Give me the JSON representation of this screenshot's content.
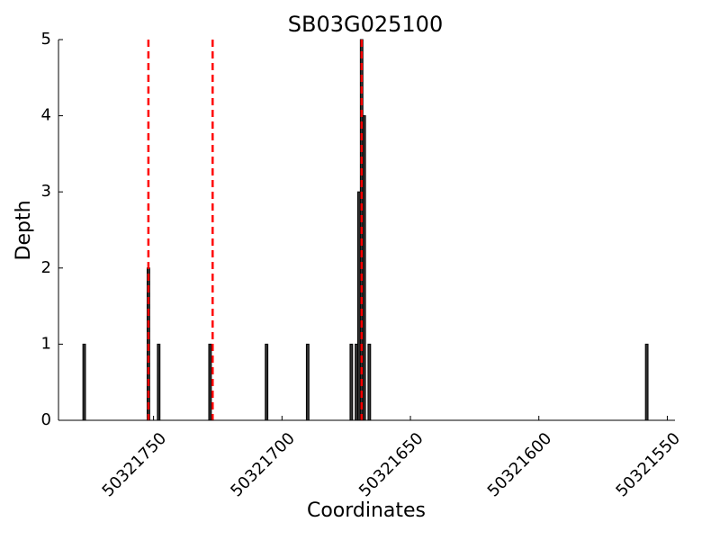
{
  "chart_data": {
    "type": "bar",
    "title": "SB03G025100",
    "xlabel": "Coordinates",
    "ylabel": "Depth",
    "x": [
      50321777,
      50321752,
      50321748,
      50321728,
      50321706,
      50321690,
      50321673,
      50321671,
      50321670,
      50321669,
      50321668,
      50321666,
      50321558
    ],
    "values": [
      1,
      2,
      1,
      1,
      1,
      1,
      1,
      1,
      3,
      5,
      4,
      1,
      1
    ],
    "color": "#333333",
    "vlines": [
      50321752,
      50321727,
      50321669
    ],
    "vline_color": "#ff0000",
    "xlim": [
      50321787,
      50321547
    ],
    "xticks": [
      50321750,
      50321700,
      50321650,
      50321600,
      50321550
    ],
    "ylim": [
      0,
      5
    ],
    "yticks": [
      0,
      1,
      2,
      3,
      4,
      5
    ]
  }
}
